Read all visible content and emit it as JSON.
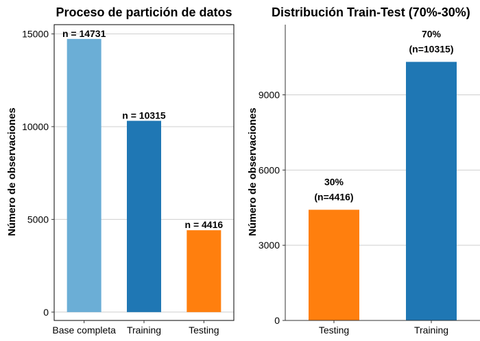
{
  "chart_data": [
    {
      "type": "bar",
      "title": "Proceso de partición de datos",
      "xlabel": "",
      "ylabel": "Número de observaciones",
      "categories": [
        "Base completa",
        "Training",
        "Testing"
      ],
      "values": [
        14731,
        10315,
        4416
      ],
      "labels": [
        "n = 14731",
        "n = 10315",
        "n = 4416"
      ],
      "colors": [
        "#6baed6",
        "#1f77b4",
        "#ff7f0e"
      ],
      "yticks": [
        0,
        5000,
        10000,
        15000
      ],
      "ytick_labels": [
        "0",
        "5000",
        "10000",
        "15000"
      ],
      "ylim": [
        -450,
        15500
      ],
      "grid": true,
      "legend": "none"
    },
    {
      "type": "bar",
      "title": "Distribución Train-Test (70%-30%)",
      "xlabel": "",
      "ylabel": "Número de observaciones",
      "categories": [
        "Testing",
        "Training"
      ],
      "values": [
        4416,
        10315
      ],
      "labels": [
        [
          "30%",
          "(n=4416)"
        ],
        [
          "70%",
          "(n=10315)"
        ]
      ],
      "colors": [
        "#ff7f0e",
        "#1f77b4"
      ],
      "yticks": [
        0,
        3000,
        6000,
        9000
      ],
      "ytick_labels": [
        "0",
        "3000",
        "6000",
        "9000"
      ],
      "ylim": [
        0,
        11800
      ],
      "grid": true,
      "legend": "none"
    }
  ]
}
